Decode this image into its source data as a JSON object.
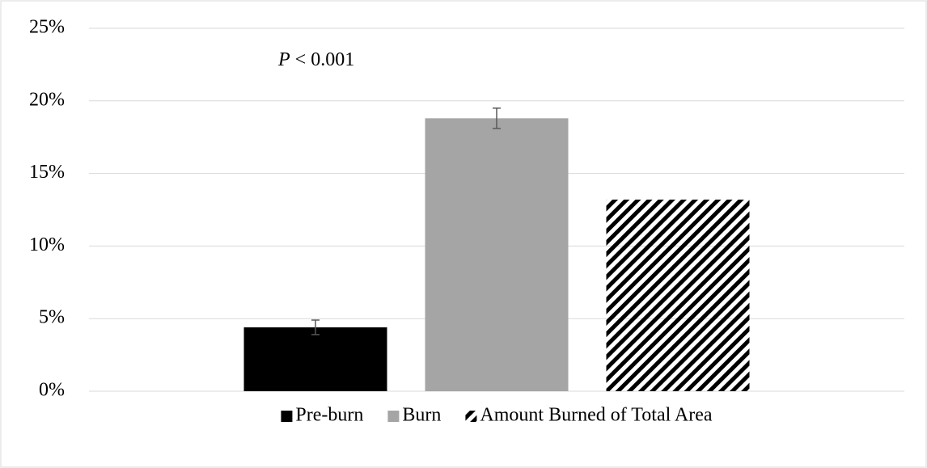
{
  "chart_data": {
    "type": "bar",
    "annotation": {
      "italic": "P",
      "rest": "< 0.001"
    },
    "series": [
      {
        "name": "Pre-burn",
        "color": "#000000",
        "values": [
          4.4
        ],
        "errors": [
          0.5
        ]
      },
      {
        "name": "Burn",
        "color": "#a5a5a5",
        "values": [
          18.8
        ],
        "errors": [
          0.7
        ]
      },
      {
        "name": "Amount Burned of Total Area",
        "color": "#000000",
        "pattern": "diagonal-stripes",
        "values": [
          13.2
        ]
      }
    ],
    "ylim": [
      0,
      25
    ],
    "yticks": [
      {
        "value": 0,
        "label": "0%"
      },
      {
        "value": 5,
        "label": "5%"
      },
      {
        "value": 10,
        "label": "10%"
      },
      {
        "value": 15,
        "label": "15%"
      },
      {
        "value": 20,
        "label": "20%"
      },
      {
        "value": 25,
        "label": "25%"
      }
    ],
    "grid": true,
    "legend": "bottom"
  }
}
